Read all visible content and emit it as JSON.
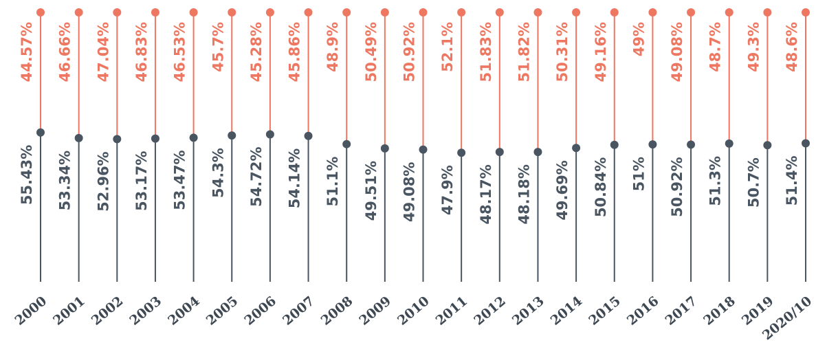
{
  "chart_data": {
    "type": "lollipop-stack",
    "categories": [
      "2000",
      "2001",
      "2002",
      "2003",
      "2004",
      "2005",
      "2006",
      "2007",
      "2008",
      "2009",
      "2010",
      "2011",
      "2012",
      "2013",
      "2014",
      "2015",
      "2016",
      "2017",
      "2018",
      "2019",
      "2020/10"
    ],
    "ylim": [
      0,
      100
    ],
    "series": [
      {
        "color": "#4a5562",
        "values": [
          55.43,
          53.34,
          52.96,
          53.17,
          53.47,
          54.3,
          54.72,
          54.14,
          51.1,
          49.51,
          49.08,
          47.9,
          48.17,
          48.18,
          49.69,
          50.84,
          51,
          50.92,
          51.3,
          50.7,
          51.4
        ],
        "value_labels": [
          "55.43%",
          "53.34%",
          "52.96%",
          "53.17%",
          "53.47%",
          "54.3%",
          "54.72%",
          "54.14%",
          "51.1%",
          "49.51%",
          "49.08%",
          "47.9%",
          "48.17%",
          "48.18%",
          "49.69%",
          "50.84%",
          "51%",
          "50.92%",
          "51.3%",
          "50.7%",
          "51.4%"
        ]
      },
      {
        "color": "#ee7762",
        "values": [
          44.57,
          46.66,
          47.04,
          46.83,
          46.53,
          45.7,
          45.28,
          45.86,
          48.9,
          50.49,
          50.92,
          52.1,
          51.83,
          51.82,
          50.31,
          49.16,
          49,
          49.08,
          48.7,
          49.3,
          48.6
        ],
        "value_labels": [
          "44.57%",
          "46.66%",
          "47.04%",
          "46.83%",
          "46.53%",
          "45.7%",
          "45.28%",
          "45.86%",
          "48.9%",
          "50.49%",
          "50.92%",
          "52.1%",
          "51.83%",
          "51.82%",
          "50.31%",
          "49.16%",
          "49%",
          "49.08%",
          "48.7%",
          "49.3%",
          "48.6%"
        ]
      }
    ]
  }
}
